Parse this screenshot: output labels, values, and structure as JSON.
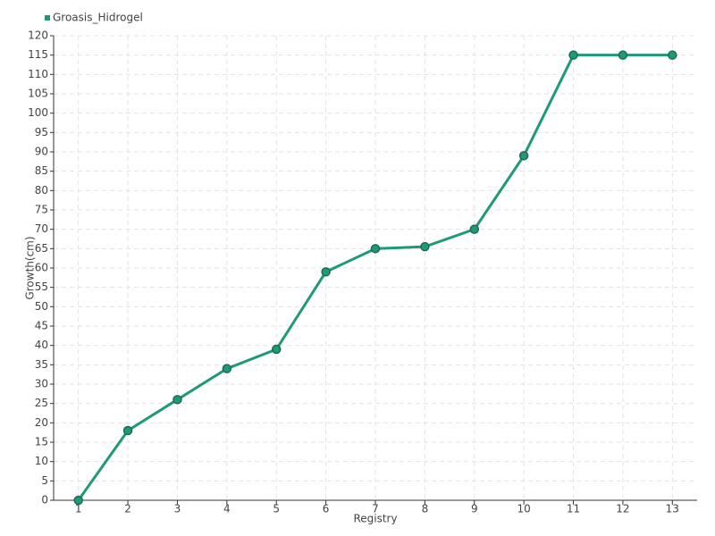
{
  "chart_data": {
    "type": "line",
    "x_label": "Registry",
    "y_label": "Growth(cm)",
    "categories": [
      "1",
      "2",
      "3",
      "4",
      "5",
      "6",
      "7",
      "8",
      "9",
      "10",
      "11",
      "12",
      "13"
    ],
    "series": [
      {
        "name": "Groasis_Hidrogel",
        "color": "#1f9a78",
        "values": [
          0,
          18,
          26,
          34,
          39,
          59,
          65,
          65.5,
          70,
          89,
          115,
          115,
          115
        ]
      }
    ],
    "ylim": [
      0,
      120
    ],
    "yticks": [
      0,
      5,
      10,
      15,
      20,
      25,
      30,
      35,
      40,
      45,
      50,
      55,
      60,
      65,
      70,
      75,
      80,
      85,
      90,
      95,
      100,
      105,
      110,
      115,
      120
    ],
    "grid": true,
    "legend": "top-left"
  }
}
